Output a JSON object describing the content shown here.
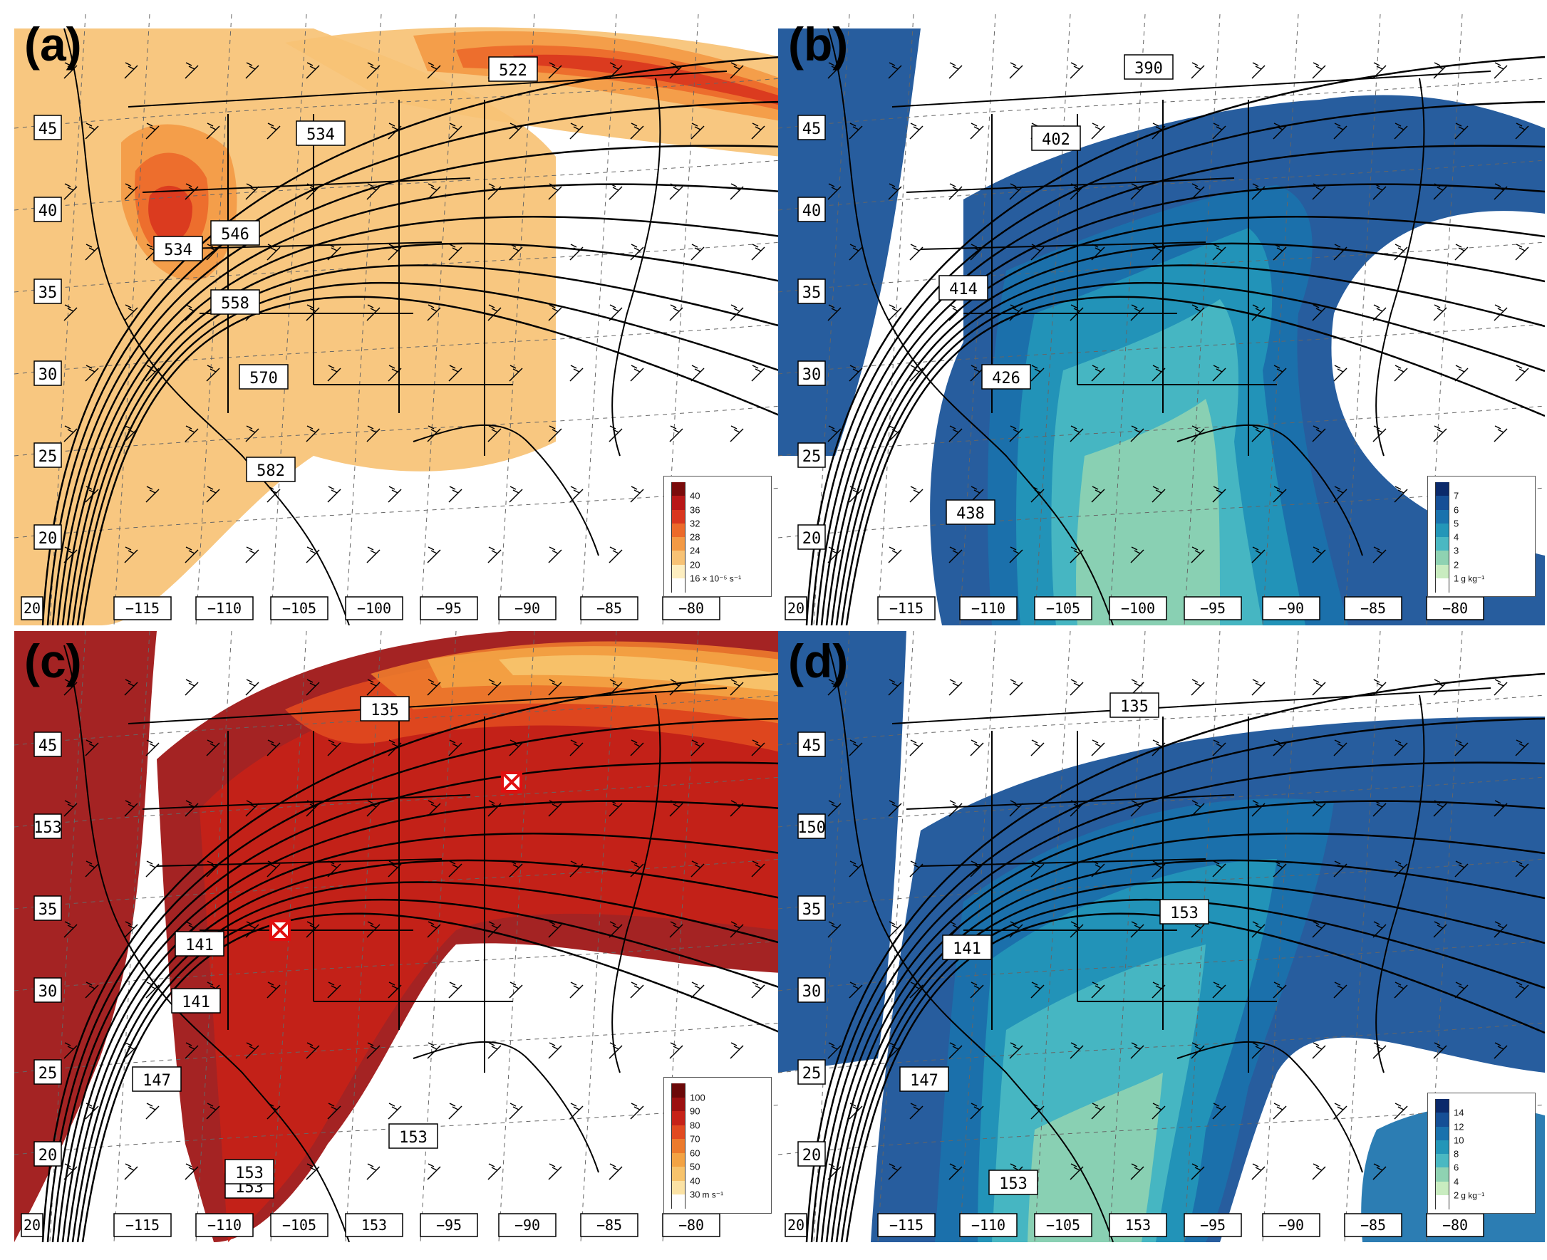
{
  "panels": [
    {
      "id": "a",
      "letter": "(a)",
      "lat_labels": [
        "45",
        "40",
        "35",
        "30",
        "25",
        "20"
      ],
      "lon_labels": [
        "20",
        "−115",
        "−110",
        "−105",
        "−100",
        "−95",
        "−90",
        "−85",
        "−80"
      ],
      "contour_labels": [
        "522",
        "534",
        "534",
        "546",
        "558",
        "570",
        "582"
      ],
      "colorbar": {
        "ticks": [
          "40",
          "36",
          "32",
          "28",
          "24",
          "20",
          "16"
        ],
        "unit": "× 10⁻⁵ s⁻¹",
        "colors": [
          "#7a0b0b",
          "#b81717",
          "#d9361e",
          "#ec6a2a",
          "#f39a45",
          "#f7c275",
          "#fdeec0",
          "#ffffff"
        ]
      }
    },
    {
      "id": "b",
      "letter": "(b)",
      "lat_labels": [
        "45",
        "40",
        "35",
        "30",
        "25",
        "20"
      ],
      "lon_labels": [
        "20",
        "−115",
        "−110",
        "−105",
        "−100",
        "−95",
        "−90",
        "−85",
        "−80"
      ],
      "contour_labels": [
        "390",
        "402",
        "414",
        "426",
        "438"
      ],
      "colorbar": {
        "ticks": [
          "7",
          "6",
          "5",
          "4",
          "3",
          "2",
          "1"
        ],
        "unit": "g kg⁻¹",
        "colors": [
          "#0b2a6b",
          "#154f96",
          "#1a72ad",
          "#2396b8",
          "#4ab8c2",
          "#8fd2b2",
          "#c9ecc0",
          "#ffffff"
        ]
      }
    },
    {
      "id": "c",
      "letter": "(c)",
      "lat_labels": [
        "45",
        "153",
        "35",
        "30",
        "25",
        "20"
      ],
      "lon_labels": [
        "20",
        "−115",
        "−110",
        "−105",
        "153",
        "−95",
        "−90",
        "−85",
        "−80"
      ],
      "contour_labels": [
        "135",
        "141",
        "141",
        "147",
        "153",
        "153",
        "153"
      ],
      "colorbar": {
        "ticks": [
          "100",
          "90",
          "80",
          "70",
          "60",
          "50",
          "40",
          "30"
        ],
        "unit": "m s⁻¹",
        "colors": [
          "#6b0808",
          "#9c1010",
          "#c62218",
          "#e14a20",
          "#ec7a2c",
          "#f3a344",
          "#f7c36c",
          "#fbe2a4",
          "#ffffff"
        ]
      }
    },
    {
      "id": "d",
      "letter": "(d)",
      "lat_labels": [
        "45",
        "150",
        "35",
        "30",
        "25",
        "20"
      ],
      "lon_labels": [
        "20",
        "−115",
        "−110",
        "−105",
        "153",
        "−95",
        "−90",
        "−85",
        "−80"
      ],
      "contour_labels": [
        "135",
        "141",
        "147",
        "153",
        "153"
      ],
      "colorbar": {
        "ticks": [
          "14",
          "12",
          "10",
          "8",
          "6",
          "4",
          "2"
        ],
        "unit": "g kg⁻¹",
        "colors": [
          "#0b2a6b",
          "#154f96",
          "#1a72ad",
          "#2396b8",
          "#4ab8c2",
          "#8fd2b2",
          "#c9ecc0",
          "#ffffff"
        ]
      }
    }
  ]
}
